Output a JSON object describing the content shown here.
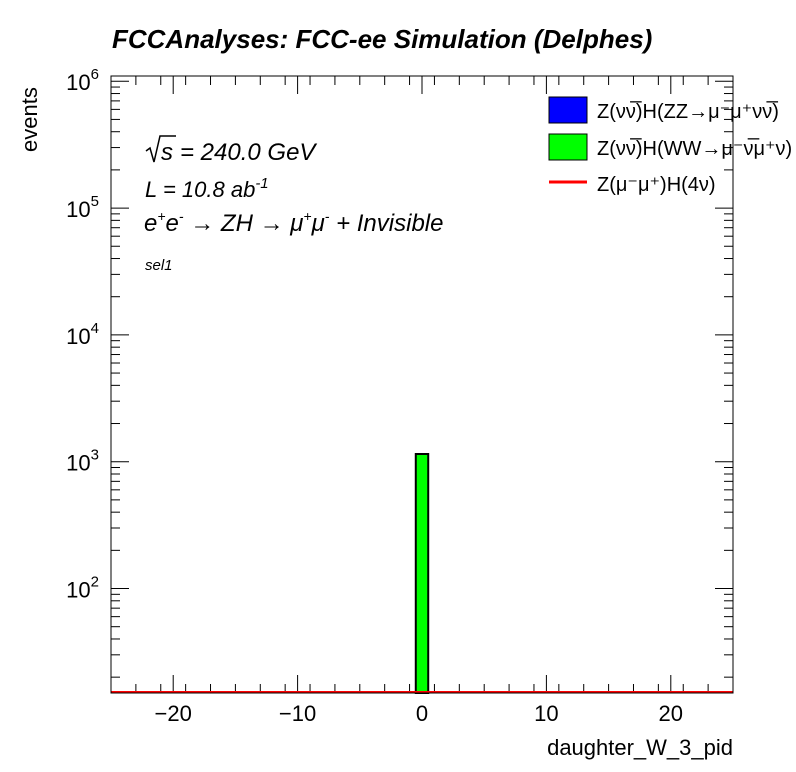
{
  "chart_data": {
    "type": "bar",
    "title": "FCCAnalyses: FCC-ee Simulation (Delphes)",
    "xlabel": "daughter_W_3_pid",
    "ylabel": "events",
    "xlim": [
      -25,
      25
    ],
    "ylim": [
      15,
      1100000
    ],
    "yscale": "log",
    "xticks": [
      -20,
      -10,
      0,
      10,
      20
    ],
    "xtick_labels": [
      "−20",
      "−10",
      "0",
      "10",
      "20"
    ],
    "ytick_exponents": [
      2,
      3,
      4,
      5,
      6
    ],
    "bin_width": 1,
    "series": [
      {
        "name": "Z(νν̅)H(ZZ→μ⁻μ⁺νν̅)",
        "style": "filled",
        "color": "#0000ff",
        "bins": []
      },
      {
        "name": "Z(νν̅)H(WW→μ⁻ν̅μ⁺ν)",
        "style": "filled",
        "color": "#00ff00",
        "bins": [
          {
            "x": 0,
            "value": 1150
          }
        ]
      },
      {
        "name": "Z(μ⁻μ⁺)H(4ν)",
        "style": "line",
        "color": "#ff0000",
        "bins": []
      }
    ],
    "annotations": {
      "sqrt_s": "= 240.0 GeV",
      "lumi_base": "L = 10.8 ab",
      "lumi_exp": "-1",
      "selection": "sel1"
    },
    "legend_position": "top-right",
    "grid": false
  }
}
